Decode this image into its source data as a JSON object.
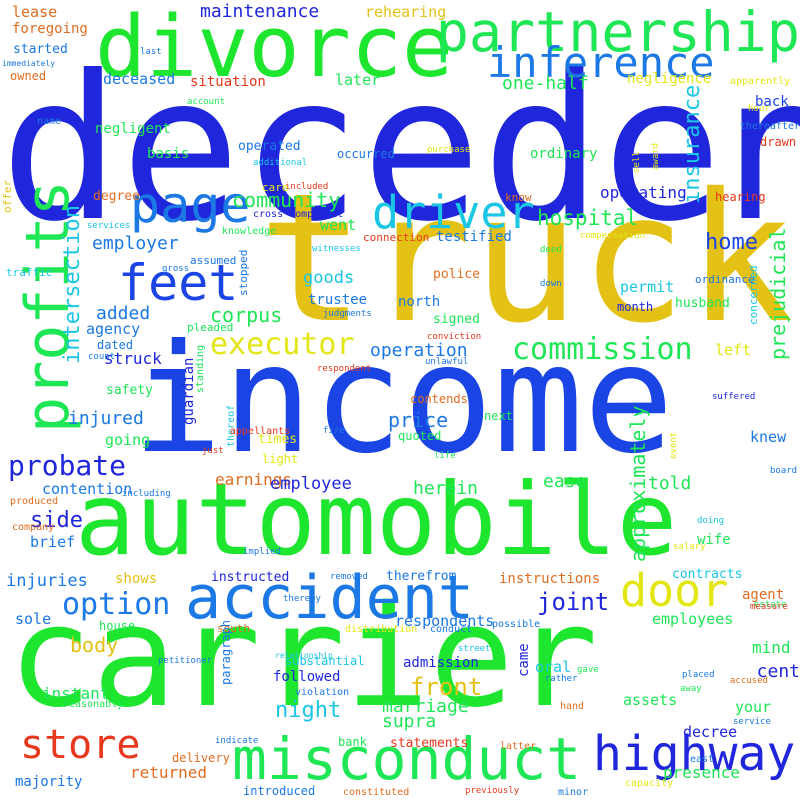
{
  "words": [
    {
      "t": "decedent",
      "c": "#1f26dc"
    },
    {
      "t": "truck",
      "c": "#e3c215"
    },
    {
      "t": "income",
      "c": "#1b44e4"
    },
    {
      "t": "carrier",
      "c": "#1ee62e"
    },
    {
      "t": "automobile",
      "c": "#1ee62e"
    },
    {
      "t": "divorce",
      "c": "#1ee62e"
    },
    {
      "t": "partnership",
      "c": "#1ee655"
    },
    {
      "t": "accident",
      "c": "#1b78e4"
    },
    {
      "t": "misconduct",
      "c": "#1ee655"
    },
    {
      "t": "profits",
      "c": "#1ee655"
    },
    {
      "t": "feet",
      "c": "#1b44e4"
    },
    {
      "t": "page",
      "c": "#1b78e4"
    },
    {
      "t": "inference",
      "c": "#1b78e4"
    },
    {
      "t": "driver",
      "c": "#1bc6e4"
    },
    {
      "t": "door",
      "c": "#e3e615"
    },
    {
      "t": "highway",
      "c": "#1f26dc"
    },
    {
      "t": "store",
      "c": "#e6381c"
    },
    {
      "t": "probate",
      "c": "#1f26dc"
    },
    {
      "t": "option",
      "c": "#1b78e4"
    },
    {
      "t": "executor",
      "c": "#e3e615"
    },
    {
      "t": "commission",
      "c": "#1ee655"
    },
    {
      "t": "insurance",
      "c": "#1bc6e4"
    },
    {
      "t": "intersection",
      "c": "#1bc6e4"
    },
    {
      "t": "prejudicial",
      "c": "#1ee655"
    },
    {
      "t": "approximately",
      "c": "#1ee655"
    },
    {
      "t": "hospital",
      "c": "#1ee655"
    },
    {
      "t": "home",
      "c": "#1b44e4"
    },
    {
      "t": "corpus",
      "c": "#1ee655"
    },
    {
      "t": "community",
      "c": "#1ee655"
    },
    {
      "t": "joint",
      "c": "#1f26dc"
    },
    {
      "t": "front",
      "c": "#e3c215"
    },
    {
      "t": "operation",
      "c": "#1b78e4"
    },
    {
      "t": "night",
      "c": "#1bc6e4"
    },
    {
      "t": "price",
      "c": "#1b78e4"
    },
    {
      "t": "goods",
      "c": "#1bc6e4"
    },
    {
      "t": "employer",
      "c": "#1b78e4"
    },
    {
      "t": "added",
      "c": "#1b78e4"
    },
    {
      "t": "injured",
      "c": "#1b78e4"
    },
    {
      "t": "herein",
      "c": "#1ee655"
    },
    {
      "t": "marriage",
      "c": "#1ee655"
    },
    {
      "t": "ease",
      "c": "#1ee655"
    },
    {
      "t": "lease",
      "c": "#e06c20"
    },
    {
      "t": "maintenance",
      "c": "#1f26dc"
    },
    {
      "t": "rehearing",
      "c": "#e3c215"
    },
    {
      "t": "foregoing",
      "c": "#e06c20"
    },
    {
      "t": "started",
      "c": "#1b78e4"
    },
    {
      "t": "owned",
      "c": "#e06c20"
    },
    {
      "t": "deceased",
      "c": "#1b78e4"
    },
    {
      "t": "situation",
      "c": "#e6381c"
    },
    {
      "t": "later",
      "c": "#1ee655"
    },
    {
      "t": "one-half",
      "c": "#1ee655"
    },
    {
      "t": "negligence",
      "c": "#e3e615"
    },
    {
      "t": "back",
      "c": "#1b44e4"
    },
    {
      "t": "negligent",
      "c": "#1ee655"
    },
    {
      "t": "operated",
      "c": "#1b78e4"
    },
    {
      "t": "basis",
      "c": "#1ee655"
    },
    {
      "t": "occurred",
      "c": "#1b78e4"
    },
    {
      "t": "ordinary",
      "c": "#1ee655"
    },
    {
      "t": "went",
      "c": "#1ee655"
    },
    {
      "t": "testified",
      "c": "#1b78e4"
    },
    {
      "t": "operating",
      "c": "#1f26dc"
    },
    {
      "t": "degree",
      "c": "#e06c20"
    },
    {
      "t": "hearing",
      "c": "#e6381c"
    },
    {
      "t": "permit",
      "c": "#1bc6e4"
    },
    {
      "t": "husband",
      "c": "#1ee655"
    },
    {
      "t": "police",
      "c": "#e06c20"
    },
    {
      "t": "trustee",
      "c": "#1b78e4"
    },
    {
      "t": "north",
      "c": "#1b78e4"
    },
    {
      "t": "signed",
      "c": "#1ee655"
    },
    {
      "t": "month",
      "c": "#1f26dc"
    },
    {
      "t": "agency",
      "c": "#1b78e4"
    },
    {
      "t": "dated",
      "c": "#1b78e4"
    },
    {
      "t": "struck",
      "c": "#1f26dc"
    },
    {
      "t": "safety",
      "c": "#1ee655"
    },
    {
      "t": "going",
      "c": "#1ee655"
    },
    {
      "t": "guardian",
      "c": "#1f26dc"
    },
    {
      "t": "times",
      "c": "#e3e615"
    },
    {
      "t": "light",
      "c": "#e3e615"
    },
    {
      "t": "contends",
      "c": "#e06c20"
    },
    {
      "t": "quoted",
      "c": "#1ee655"
    },
    {
      "t": "next",
      "c": "#1ee655"
    },
    {
      "t": "knew",
      "c": "#1b78e4"
    },
    {
      "t": "earnings",
      "c": "#e06c20"
    },
    {
      "t": "employee",
      "c": "#1f26dc"
    },
    {
      "t": "told",
      "c": "#1ee655"
    },
    {
      "t": "contention",
      "c": "#1b78e4"
    },
    {
      "t": "side",
      "c": "#1f26dc"
    },
    {
      "t": "brief",
      "c": "#1b78e4"
    },
    {
      "t": "injuries",
      "c": "#1b78e4"
    },
    {
      "t": "shows",
      "c": "#e3c215"
    },
    {
      "t": "instructed",
      "c": "#1f26dc"
    },
    {
      "t": "therefrom",
      "c": "#1b78e4"
    },
    {
      "t": "instructions",
      "c": "#e06c20"
    },
    {
      "t": "contracts",
      "c": "#1bc6e4"
    },
    {
      "t": "wife",
      "c": "#1ee655"
    },
    {
      "t": "agent",
      "c": "#e06c20"
    },
    {
      "t": "sole",
      "c": "#1b78e4"
    },
    {
      "t": "house",
      "c": "#1ee655"
    },
    {
      "t": "south",
      "c": "#e06c20"
    },
    {
      "t": "respondents",
      "c": "#1b78e4"
    },
    {
      "t": "employees",
      "c": "#1ee655"
    },
    {
      "t": "body",
      "c": "#e3c215"
    },
    {
      "t": "instant",
      "c": "#1ee655"
    },
    {
      "t": "paragraph",
      "c": "#1b78e4"
    },
    {
      "t": "substantial",
      "c": "#1bc6e4"
    },
    {
      "t": "followed",
      "c": "#1f26dc"
    },
    {
      "t": "admission",
      "c": "#1f26dc"
    },
    {
      "t": "came",
      "c": "#1f26dc"
    },
    {
      "t": "oral",
      "c": "#1bc6e4"
    },
    {
      "t": "assets",
      "c": "#1ee655"
    },
    {
      "t": "cent",
      "c": "#1f26dc"
    },
    {
      "t": "mind",
      "c": "#1ee655"
    },
    {
      "t": "your",
      "c": "#1ee655"
    },
    {
      "t": "decree",
      "c": "#1f26dc"
    },
    {
      "t": "supra",
      "c": "#1ee655"
    },
    {
      "t": "statements",
      "c": "#e6381c"
    },
    {
      "t": "bank",
      "c": "#1ee655"
    },
    {
      "t": "presence",
      "c": "#1ee655"
    },
    {
      "t": "returned",
      "c": "#e06c20"
    },
    {
      "t": "majority",
      "c": "#1b78e4"
    },
    {
      "t": "introduced",
      "c": "#1b78e4"
    },
    {
      "t": "delivery",
      "c": "#e06c20"
    },
    {
      "t": "left",
      "c": "#e3e615"
    },
    {
      "t": "produced",
      "c": "#e06c20"
    },
    {
      "t": "company",
      "c": "#e06c20"
    },
    {
      "t": "offer",
      "c": "#e3c215"
    },
    {
      "t": "traffic",
      "c": "#1bc6e4"
    },
    {
      "t": "assumed",
      "c": "#1b78e4"
    },
    {
      "t": "knowledge",
      "c": "#1ee655"
    },
    {
      "t": "stopped",
      "c": "#1b78e4"
    },
    {
      "t": "pleaded",
      "c": "#1ee655"
    },
    {
      "t": "standing",
      "c": "#1ee655"
    },
    {
      "t": "thereof",
      "c": "#1bc6e4"
    },
    {
      "t": "implied",
      "c": "#1b78e4"
    },
    {
      "t": "removed",
      "c": "#1b78e4"
    },
    {
      "t": "possible",
      "c": "#1b78e4"
    },
    {
      "t": "conduct",
      "c": "#1b78e4"
    },
    {
      "t": "distribution",
      "c": "#e3e615"
    },
    {
      "t": "relationship",
      "c": "#1bc6e4"
    },
    {
      "t": "violation",
      "c": "#1b78e4"
    },
    {
      "t": "reasonably",
      "c": "#1ee655"
    },
    {
      "t": "hand",
      "c": "#e06c20"
    },
    {
      "t": "latter",
      "c": "#e06c20"
    },
    {
      "t": "east",
      "c": "#1b78e4"
    },
    {
      "t": "constituted",
      "c": "#e06c20"
    },
    {
      "t": "previously",
      "c": "#e6381c"
    },
    {
      "t": "minor",
      "c": "#1b78e4"
    },
    {
      "t": "capacity",
      "c": "#e3e615"
    },
    {
      "t": "petitioner",
      "c": "#1b78e4"
    },
    {
      "t": "thereby",
      "c": "#1b78e4"
    },
    {
      "t": "street",
      "c": "#1bc6e4"
    },
    {
      "t": "rather",
      "c": "#1b78e4"
    },
    {
      "t": "gave",
      "c": "#1ee655"
    },
    {
      "t": "placed",
      "c": "#1b78e4"
    },
    {
      "t": "away",
      "c": "#1ee655"
    },
    {
      "t": "accused",
      "c": "#e06c20"
    },
    {
      "t": "service",
      "c": "#1b78e4"
    },
    {
      "t": "estate",
      "c": "#1ee655"
    },
    {
      "t": "measure",
      "c": "#e6381c"
    },
    {
      "t": "salary",
      "c": "#e3e615"
    },
    {
      "t": "doing",
      "c": "#1bc6e4"
    },
    {
      "t": "board",
      "c": "#1b78e4"
    },
    {
      "t": "suffered",
      "c": "#1f26dc"
    },
    {
      "t": "event",
      "c": "#e3e615"
    },
    {
      "t": "life",
      "c": "#1ee655"
    },
    {
      "t": "just",
      "c": "#e6381c"
    },
    {
      "t": "fire",
      "c": "#1b78e4"
    },
    {
      "t": "appellants",
      "c": "#e6381c"
    },
    {
      "t": "unlawful",
      "c": "#1b78e4"
    },
    {
      "t": "respondent",
      "c": "#e6381c"
    },
    {
      "t": "conviction",
      "c": "#e6381c"
    },
    {
      "t": "judgments",
      "c": "#1b78e4"
    },
    {
      "t": "count",
      "c": "#1b78e4"
    },
    {
      "t": "including",
      "c": "#1b78e4"
    },
    {
      "t": "down",
      "c": "#1b78e4"
    },
    {
      "t": "deed",
      "c": "#1ee655"
    },
    {
      "t": "gross",
      "c": "#1b78e4"
    },
    {
      "t": "witnesses",
      "c": "#1bc6e4"
    },
    {
      "t": "connection",
      "c": "#e6381c"
    },
    {
      "t": "concerned",
      "c": "#1bc6e4"
    },
    {
      "t": "ordinance",
      "c": "#1b78e4"
    },
    {
      "t": "compensation",
      "c": "#e3e615"
    },
    {
      "t": "know",
      "c": "#e06c20"
    },
    {
      "t": "included",
      "c": "#e6381c"
    },
    {
      "t": "cross-complaint",
      "c": "#1f26dc"
    },
    {
      "t": "services",
      "c": "#1bc6e4"
    },
    {
      "t": "purchase",
      "c": "#e3e615"
    },
    {
      "t": "award",
      "c": "#e3e615"
    },
    {
      "t": "sell",
      "c": "#e3e615"
    },
    {
      "t": "care",
      "c": "#e3e615"
    },
    {
      "t": "additional",
      "c": "#1bc6e4"
    },
    {
      "t": "thereafter",
      "c": "#1b78e4"
    },
    {
      "t": "drawn",
      "c": "#e6381c"
    },
    {
      "t": "hour",
      "c": "#e3e615"
    },
    {
      "t": "apparently",
      "c": "#e3e615"
    },
    {
      "t": "last",
      "c": "#1b78e4"
    },
    {
      "t": "account",
      "c": "#1ee655"
    },
    {
      "t": "name",
      "c": "#1b78e4"
    },
    {
      "t": "immediately",
      "c": "#1b78e4"
    },
    {
      "t": "indicate",
      "c": "#1b78e4"
    }
  ]
}
